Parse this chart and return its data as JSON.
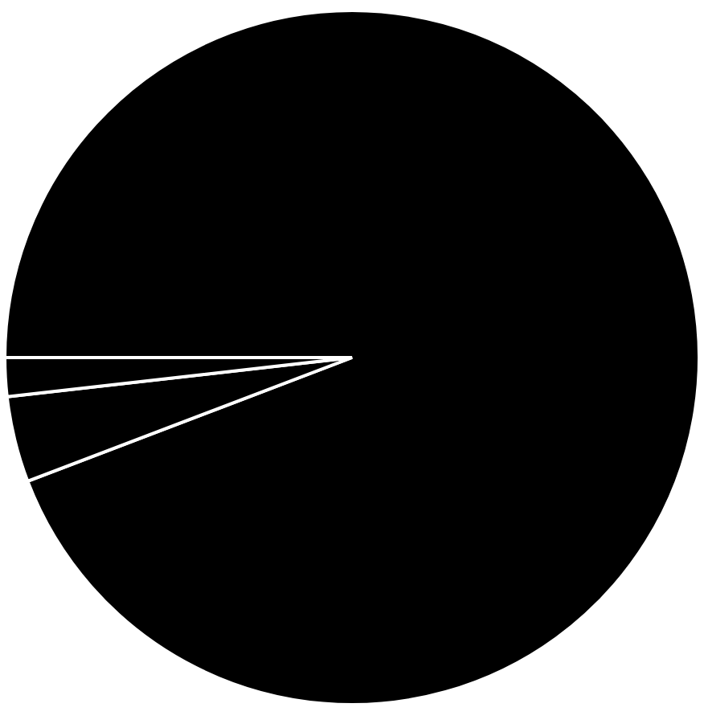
{
  "chart_data": {
    "type": "pie",
    "categories": [
      null,
      null,
      null
    ],
    "values": [
      94.2,
      4.0,
      1.8
    ],
    "colors": [
      "#000000",
      "#000000",
      "#000000"
    ],
    "legend": false
  }
}
